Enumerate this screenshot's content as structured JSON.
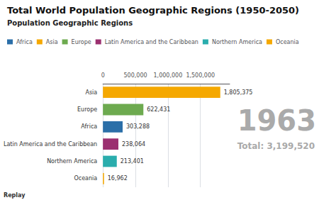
{
  "chart_data": {
    "type": "bar",
    "orientation": "horizontal",
    "title": "Total World Population Geographic Regions (1950-2050)",
    "subtitle": "Population Geographic Regions",
    "categories": [
      "Asia",
      "Europe",
      "Africa",
      "Latin America and the Caribbean",
      "Northern America",
      "Oceania"
    ],
    "series": [
      {
        "name": "Africa",
        "color": "#2B6FA8",
        "values": [
          null,
          null,
          303288,
          null,
          null,
          null
        ],
        "value_labels": [
          null,
          null,
          "303,288",
          null,
          null,
          null
        ]
      },
      {
        "name": "Asia",
        "color": "#F5A800",
        "values": [
          1805375,
          null,
          null,
          null,
          null,
          null
        ],
        "value_labels": [
          "1,805,375",
          null,
          null,
          null,
          null,
          null
        ]
      },
      {
        "name": "Europe",
        "color": "#6DAA4F",
        "values": [
          null,
          622431,
          null,
          null,
          null,
          null
        ],
        "value_labels": [
          null,
          "622,431",
          null,
          null,
          null,
          null
        ]
      },
      {
        "name": "Latin America and the Caribbean",
        "color": "#9B3070",
        "values": [
          null,
          null,
          null,
          238064,
          null,
          null
        ],
        "value_labels": [
          null,
          null,
          null,
          "238,064",
          null,
          null
        ]
      },
      {
        "name": "Northern America",
        "color": "#2AADAD",
        "values": [
          null,
          null,
          null,
          null,
          213401,
          null
        ],
        "value_labels": [
          null,
          null,
          null,
          null,
          "213,401",
          null
        ]
      },
      {
        "name": "Oceania",
        "color": "#F5A800",
        "values": [
          null,
          null,
          null,
          null,
          null,
          16962
        ],
        "value_labels": [
          null,
          null,
          null,
          null,
          null,
          "16,962"
        ]
      }
    ],
    "xlim": [
      0,
      1950000
    ],
    "xticks": [
      0,
      {
        "value": 500000,
        "label": "500,000"
      },
      {
        "value": 1000000,
        "label": "1,000,000"
      },
      {
        "value": 1500000,
        "label": "1,500,000"
      }
    ],
    "grid": true,
    "legend": "upper left",
    "data_labels": true,
    "annotations": [
      "1963",
      "Total: 3,199,520",
      "Replay"
    ]
  }
}
